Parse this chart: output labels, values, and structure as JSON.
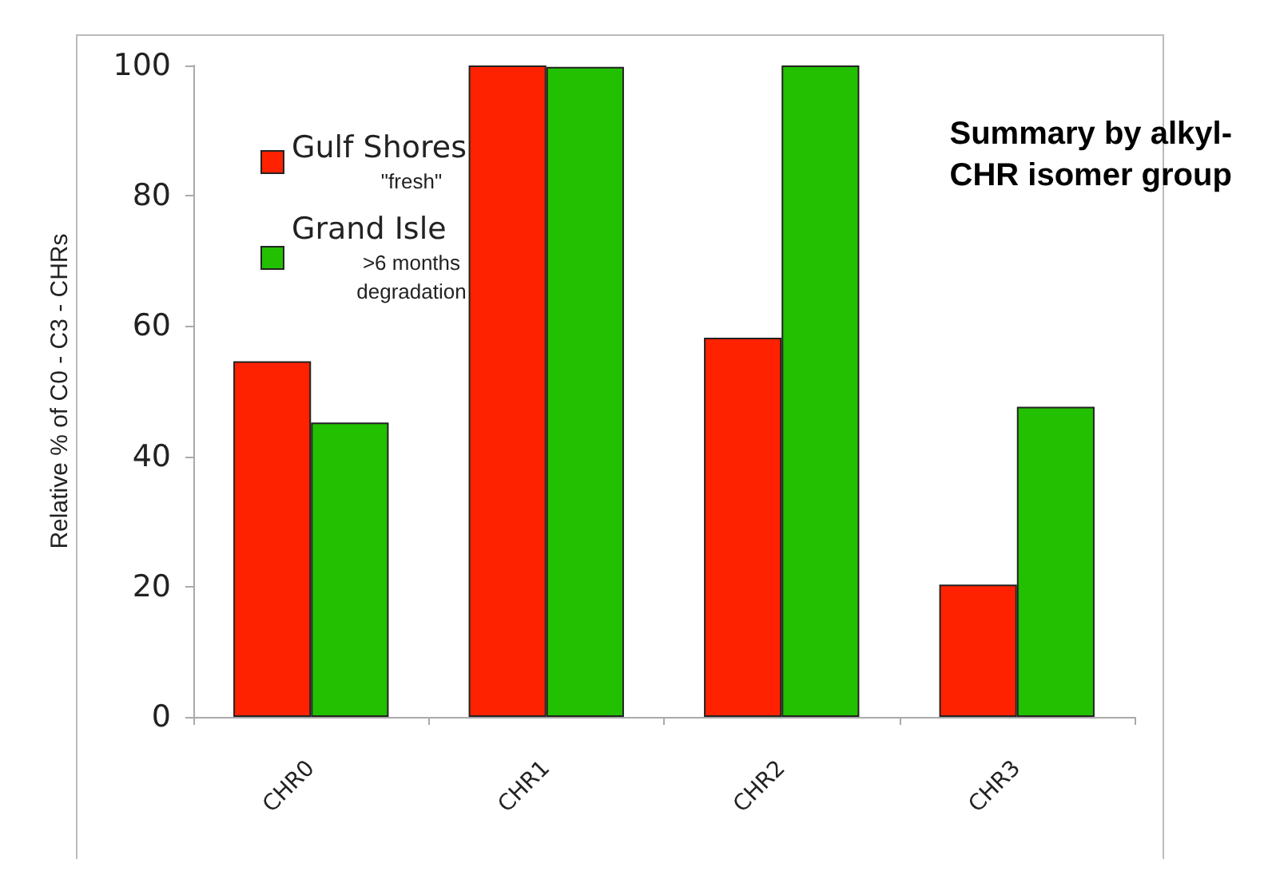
{
  "chart_data": {
    "type": "bar",
    "title": "Summary by alkyl-\nCHR isomer group",
    "ylabel": "Relative % of C0 - C3 - CHRs",
    "categories": [
      "CHR0",
      "CHR1",
      "CHR2",
      "CHR3"
    ],
    "series": [
      {
        "name": "Gulf Shores\n\"fresh\"",
        "color": "#ff2200",
        "values": [
          54.6,
          100,
          58.2,
          20.3
        ]
      },
      {
        "name": "Grand Isle\n>6 months\ndegradation",
        "color": "#22c000",
        "values": [
          45.2,
          99.8,
          100,
          47.6
        ]
      }
    ],
    "ylim": [
      0,
      100
    ],
    "yticks": [
      0,
      20,
      40,
      60,
      80,
      100
    ],
    "grid": false,
    "legend": "top left"
  }
}
